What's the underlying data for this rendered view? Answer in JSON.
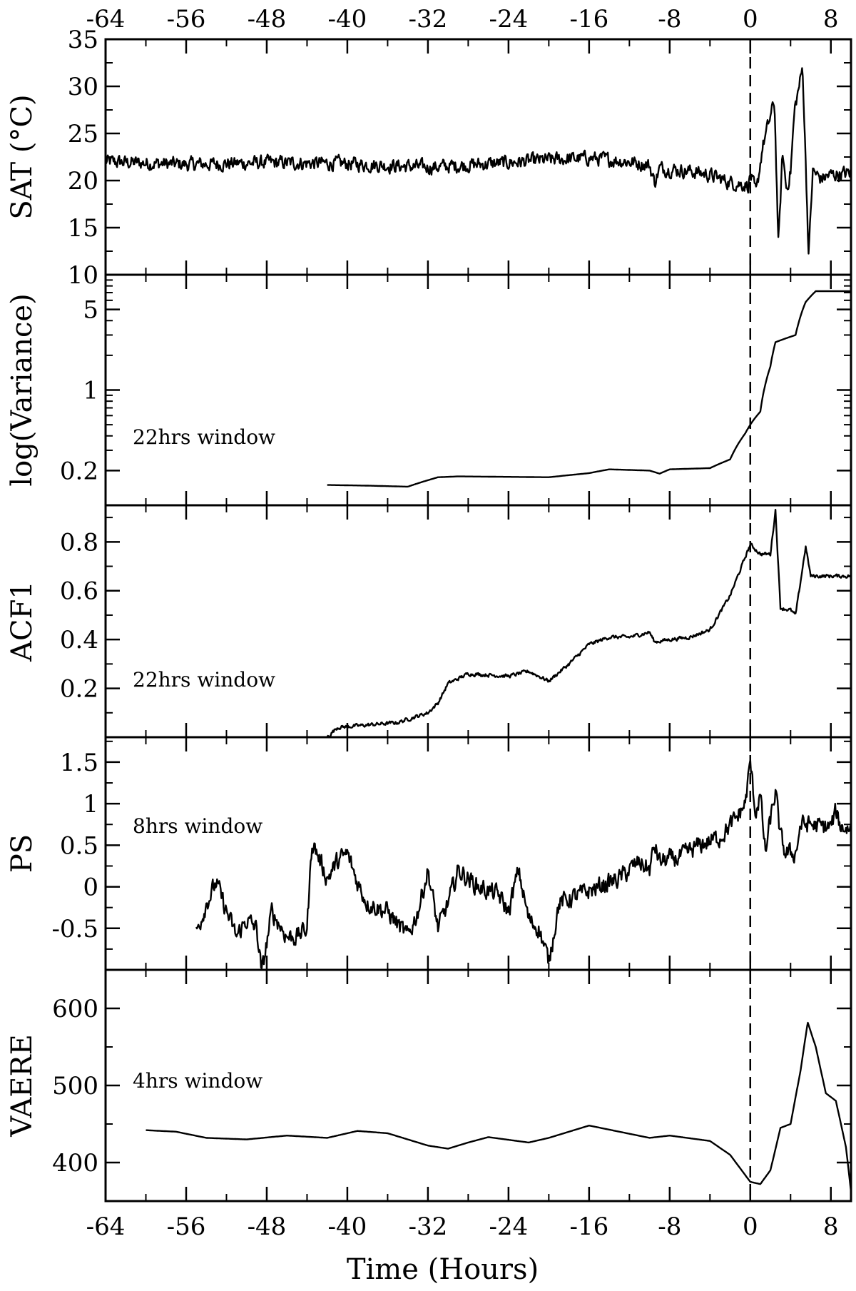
{
  "chart_data": {
    "type": "line",
    "x_axis": {
      "title": "Time (Hours)",
      "range": [
        -64,
        10
      ],
      "ticks": [
        -64,
        -56,
        -48,
        -40,
        -32,
        -24,
        -16,
        -8,
        0,
        8
      ],
      "tick_labels": [
        "-64",
        "-56",
        "-48",
        "-40",
        "-32",
        "-24",
        "-16",
        "-8",
        "0",
        "8"
      ],
      "minor_step": 4,
      "labels_top_and_bottom": true
    },
    "reference_line": {
      "x": 0,
      "style": "dashed"
    },
    "panels": [
      {
        "id": "sat",
        "ylabel": "SAT (°C)",
        "scale": "linear",
        "ylim": [
          10,
          35
        ],
        "yticks": [
          10,
          15,
          20,
          25,
          30,
          35
        ],
        "ytick_labels": [
          "10",
          "15",
          "20",
          "25",
          "30",
          "35"
        ],
        "annotation": "",
        "noise": 0.8,
        "points": [
          [
            -64,
            22.0
          ],
          [
            -56,
            21.7
          ],
          [
            -48,
            21.9
          ],
          [
            -40,
            21.8
          ],
          [
            -32,
            21.4
          ],
          [
            -24,
            21.9
          ],
          [
            -20,
            22.2
          ],
          [
            -16,
            22.4
          ],
          [
            -12,
            22.0
          ],
          [
            -10,
            21.6
          ],
          [
            -9.5,
            19.8
          ],
          [
            -9,
            21.3
          ],
          [
            -6,
            21.0
          ],
          [
            -4,
            20.6
          ],
          [
            -2,
            19.8
          ],
          [
            -0.2,
            19.5
          ],
          [
            0,
            20.6
          ],
          [
            0.6,
            18.6
          ],
          [
            1.2,
            23.5
          ],
          [
            2.4,
            28.4
          ],
          [
            2.8,
            13.0
          ],
          [
            3.2,
            23.0
          ],
          [
            3.6,
            19.0
          ],
          [
            4.0,
            21.0
          ],
          [
            4.4,
            27.5
          ],
          [
            5.2,
            32.0
          ],
          [
            5.8,
            12.0
          ],
          [
            6.2,
            21.0
          ],
          [
            7.0,
            20.2
          ],
          [
            8.0,
            20.6
          ],
          [
            10,
            20.8
          ]
        ]
      },
      {
        "id": "variance",
        "ylabel": "log(Variance)",
        "scale": "log",
        "ylim": [
          0.1,
          10
        ],
        "yticks": [
          0.2,
          1,
          5
        ],
        "ytick_labels": [
          "0.2",
          "1",
          "5"
        ],
        "minor_ticks": [
          0.3,
          0.4,
          0.5,
          0.6,
          0.7,
          0.8,
          0.9,
          2,
          3,
          4,
          6,
          7,
          8,
          9
        ],
        "annotation": "22hrs window",
        "noise": 0,
        "points": [
          [
            -42,
            0.15
          ],
          [
            -38,
            0.148
          ],
          [
            -34,
            0.145
          ],
          [
            -31,
            0.175
          ],
          [
            -29,
            0.178
          ],
          [
            -20,
            0.175
          ],
          [
            -16,
            0.19
          ],
          [
            -14,
            0.205
          ],
          [
            -10,
            0.2
          ],
          [
            -9,
            0.188
          ],
          [
            -8,
            0.205
          ],
          [
            -4,
            0.21
          ],
          [
            -2,
            0.25
          ],
          [
            -0.5,
            0.42
          ],
          [
            0,
            0.5
          ],
          [
            1.0,
            0.65
          ],
          [
            2.0,
            1.6
          ],
          [
            2.5,
            2.6
          ],
          [
            3.5,
            2.8
          ],
          [
            4.5,
            3.0
          ],
          [
            5.5,
            5.8
          ],
          [
            6.5,
            7.2
          ],
          [
            10,
            7.2
          ]
        ]
      },
      {
        "id": "acf1",
        "ylabel": "ACF1",
        "scale": "linear",
        "ylim": [
          0,
          0.95
        ],
        "yticks": [
          0.2,
          0.4,
          0.6,
          0.8
        ],
        "ytick_labels": [
          "0.2",
          "0.4",
          "0.6",
          "0.8"
        ],
        "annotation": "22hrs window",
        "noise": 0.008,
        "points": [
          [
            -42,
            0.0
          ],
          [
            -41,
            0.04
          ],
          [
            -38,
            0.05
          ],
          [
            -35,
            0.06
          ],
          [
            -32,
            0.1
          ],
          [
            -31,
            0.14
          ],
          [
            -30,
            0.22
          ],
          [
            -28,
            0.26
          ],
          [
            -24,
            0.25
          ],
          [
            -22,
            0.27
          ],
          [
            -20,
            0.23
          ],
          [
            -18,
            0.3
          ],
          [
            -16,
            0.38
          ],
          [
            -14,
            0.41
          ],
          [
            -12,
            0.41
          ],
          [
            -10,
            0.43
          ],
          [
            -9.5,
            0.39
          ],
          [
            -8,
            0.4
          ],
          [
            -6,
            0.41
          ],
          [
            -4,
            0.44
          ],
          [
            -2,
            0.58
          ],
          [
            0,
            0.79
          ],
          [
            1,
            0.75
          ],
          [
            2,
            0.75
          ],
          [
            2.5,
            0.93
          ],
          [
            3,
            0.53
          ],
          [
            4,
            0.52
          ],
          [
            4.5,
            0.5
          ],
          [
            5.5,
            0.78
          ],
          [
            6,
            0.66
          ],
          [
            10,
            0.66
          ]
        ]
      },
      {
        "id": "ps",
        "ylabel": "PS",
        "scale": "linear",
        "ylim": [
          -1.0,
          1.8
        ],
        "yticks": [
          -0.5,
          0,
          0.5,
          1,
          1.5
        ],
        "ytick_labels": [
          "-0.5",
          "0",
          "0.5",
          "1",
          "1.5"
        ],
        "annotation": "8hrs window",
        "noise": 0.12,
        "points": [
          [
            -55,
            -0.55
          ],
          [
            -54,
            -0.2
          ],
          [
            -53,
            0.05
          ],
          [
            -52,
            -0.3
          ],
          [
            -51,
            -0.6
          ],
          [
            -50,
            -0.4
          ],
          [
            -49,
            -0.5
          ],
          [
            -48.5,
            -1.05
          ],
          [
            -47.5,
            -0.3
          ],
          [
            -46,
            -0.6
          ],
          [
            -45,
            -0.6
          ],
          [
            -44,
            -0.5
          ],
          [
            -43.5,
            0.55
          ],
          [
            -42,
            0.1
          ],
          [
            -41,
            0.3
          ],
          [
            -40,
            0.4
          ],
          [
            -39,
            0.05
          ],
          [
            -38,
            -0.2
          ],
          [
            -36,
            -0.3
          ],
          [
            -34,
            -0.6
          ],
          [
            -33,
            -0.3
          ],
          [
            -32,
            0.2
          ],
          [
            -31,
            -0.5
          ],
          [
            -30,
            -0.2
          ],
          [
            -29,
            0.2
          ],
          [
            -27,
            0.0
          ],
          [
            -25,
            -0.1
          ],
          [
            -24,
            -0.3
          ],
          [
            -23,
            0.2
          ],
          [
            -22,
            -0.4
          ],
          [
            -21,
            -0.5
          ],
          [
            -20,
            -0.9
          ],
          [
            -19,
            -0.2
          ],
          [
            -17,
            -0.1
          ],
          [
            -15,
            0.0
          ],
          [
            -13,
            0.1
          ],
          [
            -11,
            0.3
          ],
          [
            -10,
            0.2
          ],
          [
            -9.5,
            0.5
          ],
          [
            -9,
            0.3
          ],
          [
            -7,
            0.35
          ],
          [
            -5,
            0.5
          ],
          [
            -3,
            0.6
          ],
          [
            -1.5,
            0.8
          ],
          [
            -0.5,
            1.0
          ],
          [
            0,
            1.5
          ],
          [
            0.5,
            0.9
          ],
          [
            1,
            1.1
          ],
          [
            1.5,
            0.4
          ],
          [
            2,
            0.8
          ],
          [
            2.5,
            1.15
          ],
          [
            3,
            0.6
          ],
          [
            3.5,
            0.4
          ],
          [
            4.5,
            0.4
          ],
          [
            5,
            0.75
          ],
          [
            6,
            0.75
          ],
          [
            7,
            0.72
          ],
          [
            8,
            0.72
          ],
          [
            8.5,
            0.9
          ],
          [
            9,
            0.72
          ],
          [
            10,
            0.7
          ]
        ]
      },
      {
        "id": "vaere",
        "ylabel": "VAERE",
        "scale": "linear",
        "ylim": [
          350,
          650
        ],
        "yticks": [
          400,
          500,
          600
        ],
        "ytick_labels": [
          "400",
          "500",
          "600"
        ],
        "annotation": "4hrs window",
        "noise": 0,
        "points": [
          [
            -60,
            442
          ],
          [
            -57,
            440
          ],
          [
            -54,
            432
          ],
          [
            -50,
            430
          ],
          [
            -46,
            435
          ],
          [
            -42,
            432
          ],
          [
            -39,
            441
          ],
          [
            -36,
            438
          ],
          [
            -32,
            422
          ],
          [
            -30,
            418
          ],
          [
            -28,
            426
          ],
          [
            -26,
            433
          ],
          [
            -22,
            426
          ],
          [
            -20,
            432
          ],
          [
            -16,
            448
          ],
          [
            -13,
            440
          ],
          [
            -10,
            432
          ],
          [
            -8,
            435
          ],
          [
            -4,
            428
          ],
          [
            -2,
            410
          ],
          [
            0,
            375
          ],
          [
            1,
            372
          ],
          [
            2,
            390
          ],
          [
            3,
            445
          ],
          [
            4,
            450
          ],
          [
            5,
            520
          ],
          [
            5.7,
            582
          ],
          [
            6.5,
            550
          ],
          [
            7.5,
            490
          ],
          [
            8.5,
            480
          ],
          [
            9.5,
            420
          ],
          [
            10,
            362
          ]
        ]
      }
    ]
  }
}
